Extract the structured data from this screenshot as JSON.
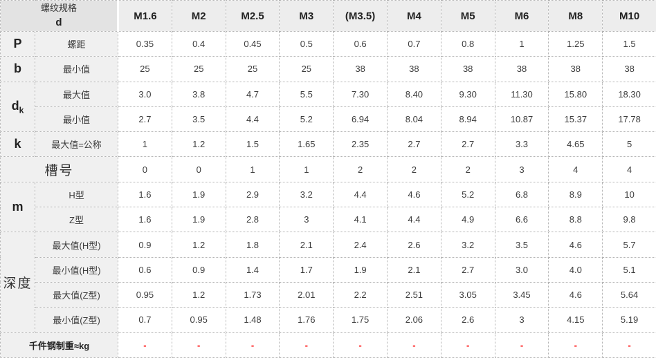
{
  "colors": {
    "header_bg": "#ededed",
    "corner_bg": "#e3e3e3",
    "label_bg": "#f0f0f0",
    "border": "#b3b3b3",
    "text": "#3c3c3c",
    "dash": "#ff0000"
  },
  "table": {
    "corner": {
      "line1": "螺纹规格",
      "line2": "d"
    },
    "columns": [
      "M1.6",
      "M2",
      "M2.5",
      "M3",
      "(M3.5)",
      "M4",
      "M5",
      "M6",
      "M8",
      "M10"
    ],
    "rows": [
      {
        "group": "P",
        "group_rowspan": 1,
        "group_style": "letter",
        "label": "螺距",
        "values": [
          "0.35",
          "0.4",
          "0.45",
          "0.5",
          "0.6",
          "0.7",
          "0.8",
          "1",
          "1.25",
          "1.5"
        ]
      },
      {
        "group": "b",
        "group_rowspan": 1,
        "group_style": "letter",
        "label": "最小值",
        "values": [
          "25",
          "25",
          "25",
          "25",
          "38",
          "38",
          "38",
          "38",
          "38",
          "38"
        ]
      },
      {
        "group": "d",
        "group_sub": "k",
        "group_rowspan": 2,
        "group_style": "letter",
        "label": "最大值",
        "values": [
          "3.0",
          "3.8",
          "4.7",
          "5.5",
          "7.30",
          "8.40",
          "9.30",
          "11.30",
          "15.80",
          "18.30"
        ]
      },
      {
        "label": "最小值",
        "values": [
          "2.7",
          "3.5",
          "4.4",
          "5.2",
          "6.94",
          "8.04",
          "8.94",
          "10.87",
          "15.37",
          "17.78"
        ]
      },
      {
        "group": "k",
        "group_rowspan": 1,
        "group_style": "letter",
        "label": "最大值=公称",
        "values": [
          "1",
          "1.2",
          "1.5",
          "1.65",
          "2.35",
          "2.7",
          "2.7",
          "3.3",
          "4.65",
          "5"
        ]
      },
      {
        "span_label": "槽号",
        "span_style": "cn-large",
        "values": [
          "0",
          "0",
          "1",
          "1",
          "2",
          "2",
          "2",
          "3",
          "4",
          "4"
        ]
      },
      {
        "group": "m",
        "group_rowspan": 2,
        "group_style": "letter",
        "label": "H型",
        "values": [
          "1.6",
          "1.9",
          "2.9",
          "3.2",
          "4.4",
          "4.6",
          "5.2",
          "6.8",
          "8.9",
          "10"
        ]
      },
      {
        "label": "Z型",
        "values": [
          "1.6",
          "1.9",
          "2.8",
          "3",
          "4.1",
          "4.4",
          "4.9",
          "6.6",
          "8.8",
          "9.8"
        ]
      },
      {
        "group": "深度",
        "group_rowspan": 4,
        "group_style": "cn-large",
        "label": "最大值(H型)",
        "values": [
          "0.9",
          "1.2",
          "1.8",
          "2.1",
          "2.4",
          "2.6",
          "3.2",
          "3.5",
          "4.6",
          "5.7"
        ]
      },
      {
        "label": "最小值(H型)",
        "values": [
          "0.6",
          "0.9",
          "1.4",
          "1.7",
          "1.9",
          "2.1",
          "2.7",
          "3.0",
          "4.0",
          "5.1"
        ]
      },
      {
        "label": "最大值(Z型)",
        "values": [
          "0.95",
          "1.2",
          "1.73",
          "2.01",
          "2.2",
          "2.51",
          "3.05",
          "3.45",
          "4.6",
          "5.64"
        ]
      },
      {
        "label": "最小值(Z型)",
        "values": [
          "0.7",
          "0.95",
          "1.48",
          "1.76",
          "1.75",
          "2.06",
          "2.6",
          "3",
          "4.15",
          "5.19"
        ]
      },
      {
        "span_label": "千件钢制重≈kg",
        "span_style": "weight",
        "value_style": "dash",
        "values": [
          "-",
          "-",
          "-",
          "-",
          "-",
          "-",
          "-",
          "-",
          "-",
          "-"
        ]
      }
    ]
  }
}
